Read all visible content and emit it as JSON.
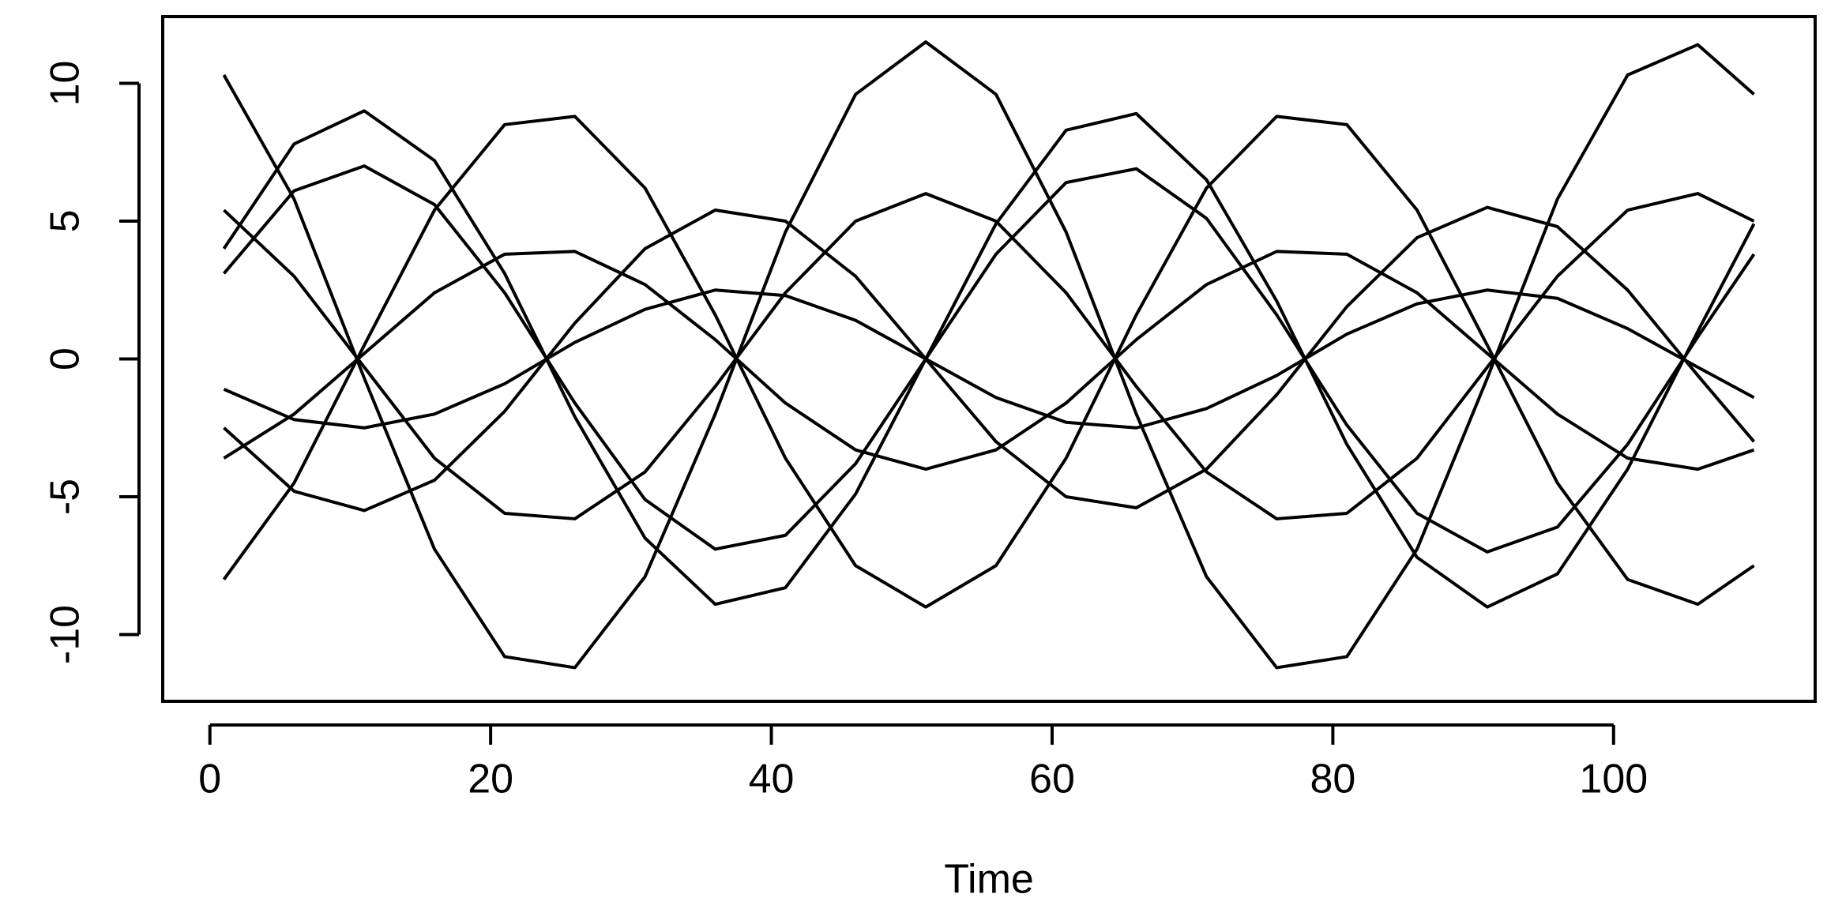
{
  "chart_data": {
    "type": "line",
    "x_label": "Time",
    "color": "#000000",
    "x": [
      1,
      6,
      11,
      16,
      21,
      26,
      31,
      36,
      41,
      46,
      51,
      56,
      61,
      66,
      71,
      76,
      81,
      86,
      91,
      96,
      101,
      106,
      110
    ],
    "series": [
      {
        "values": [
          10.3,
          5.8,
          -0.7,
          -6.9,
          -10.8,
          -11.2,
          -7.9,
          -2.0,
          4.6,
          9.6,
          11.5,
          9.6,
          4.6,
          -2.0,
          -7.9,
          -11.2,
          -10.8,
          -6.9,
          -0.7,
          5.8,
          10.3,
          11.4,
          9.6
        ]
      },
      {
        "values": [
          -8.0,
          -4.5,
          0.5,
          5.4,
          8.5,
          8.8,
          6.2,
          1.6,
          -3.6,
          -7.5,
          -9,
          -7.5,
          -3.6,
          1.6,
          6.2,
          8.8,
          8.5,
          5.4,
          0.5,
          -4.5,
          -8.0,
          -8.9,
          -7.5
        ]
      },
      {
        "values": [
          3.1,
          6.1,
          7.0,
          5.6,
          2.4,
          -1.6,
          -5.1,
          -6.9,
          -6.4,
          -3.8,
          0,
          3.8,
          6.4,
          6.9,
          5.1,
          1.6,
          -2.4,
          -5.6,
          -7.0,
          -6.1,
          -3.1,
          0.8,
          3.8
        ]
      },
      {
        "values": [
          -2.5,
          -4.8,
          -5.5,
          -4.4,
          -1.9,
          1.3,
          4.0,
          5.4,
          5.0,
          3.0,
          0,
          -3.0,
          -5.0,
          -5.4,
          -4.0,
          -1.3,
          1.9,
          4.4,
          5.5,
          4.8,
          2.5,
          -0.6,
          -3.0
        ]
      },
      {
        "values": [
          5.4,
          3.0,
          -0.3,
          -3.6,
          -5.6,
          -5.8,
          -4.1,
          -1.0,
          2.4,
          5.0,
          6.0,
          5.0,
          2.4,
          -1.0,
          -4.1,
          -5.8,
          -5.6,
          -3.6,
          -0.3,
          3.0,
          5.4,
          6.0,
          5.0
        ]
      },
      {
        "values": [
          -3.6,
          -2.0,
          0.2,
          2.4,
          3.8,
          3.9,
          2.7,
          0.7,
          -1.6,
          -3.3,
          -4.0,
          -3.3,
          -1.6,
          0.7,
          2.7,
          3.9,
          3.8,
          2.4,
          0.2,
          -2.0,
          -3.6,
          -4.0,
          -3.3
        ]
      },
      {
        "values": [
          4.0,
          7.8,
          9.0,
          7.2,
          3.1,
          -2.1,
          -6.5,
          -8.9,
          -8.3,
          -4.9,
          0,
          4.9,
          8.3,
          8.9,
          6.5,
          2.1,
          -3.1,
          -7.2,
          -9.0,
          -7.8,
          -4.0,
          1.0,
          4.9
        ]
      },
      {
        "values": [
          -1.1,
          -2.2,
          -2.5,
          -2.0,
          -0.9,
          0.6,
          1.8,
          2.5,
          2.3,
          1.4,
          0,
          -1.4,
          -2.3,
          -2.5,
          -1.8,
          -0.6,
          0.9,
          2.0,
          2.5,
          2.2,
          1.1,
          -0.3,
          -1.4
        ]
      }
    ],
    "xlim": [
      -3.36,
      114.36
    ],
    "ylim": [
      -12.42,
      12.42
    ],
    "xticks": [
      0,
      20,
      40,
      60,
      80,
      100
    ],
    "yticks": [
      -10,
      -5,
      0,
      5,
      10
    ]
  }
}
